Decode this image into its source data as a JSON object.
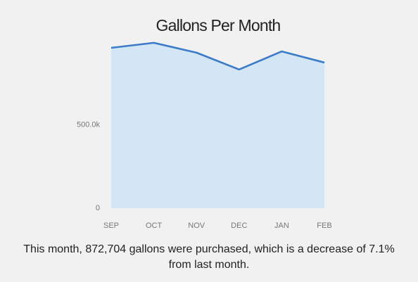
{
  "chart_data": {
    "type": "area",
    "title": "Gallons Per Month",
    "categories": [
      "SEP",
      "OCT",
      "NOV",
      "DEC",
      "JAN",
      "FEB"
    ],
    "values": [
      961000,
      991000,
      932000,
      831000,
      939400,
      872704
    ],
    "color": "#3b7bc8",
    "fill_color": "#d2e6f6",
    "ylim": [
      0,
      1100000
    ],
    "yticks": [
      0,
      {
        "value": 500000,
        "label": "500.0k"
      }
    ],
    "grid": false,
    "caption": "This month, 872,704 gallons were purchased, which is a decrease of 7.1% from last month."
  }
}
